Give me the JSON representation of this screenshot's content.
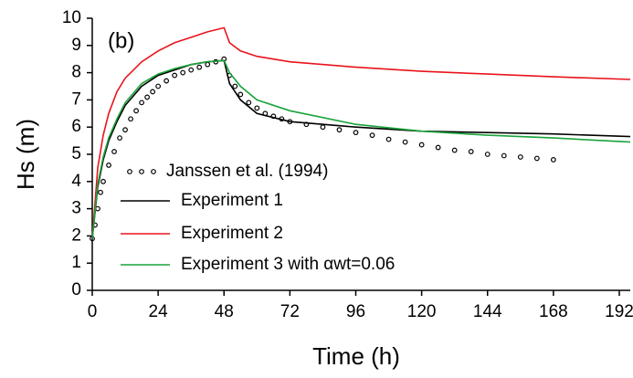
{
  "chart_data": {
    "type": "line",
    "annotation": "(b)",
    "x_label": "Time (h)",
    "y_label": "Hs (m)",
    "xlim": [
      0,
      196
    ],
    "ylim": [
      0,
      10
    ],
    "xticks": [
      0,
      24,
      48,
      72,
      96,
      120,
      144,
      168,
      192
    ],
    "yticks": [
      0,
      1,
      2,
      3,
      4,
      5,
      6,
      7,
      8,
      9,
      10
    ],
    "series": [
      {
        "name": "Janssen et al. (1994)",
        "color": "#000000",
        "style": "circles",
        "x": [
          0,
          1,
          2,
          3,
          4,
          6,
          8,
          10,
          12,
          14,
          16,
          18,
          20,
          22,
          24,
          27,
          30,
          33,
          36,
          39,
          42,
          45,
          48,
          50,
          52,
          54,
          57,
          60,
          63,
          66,
          69,
          72,
          78,
          84,
          90,
          96,
          102,
          108,
          114,
          120,
          126,
          132,
          138,
          144,
          150,
          156,
          162,
          168
        ],
        "values": [
          1.9,
          2.4,
          3.0,
          3.6,
          4.0,
          4.6,
          5.1,
          5.6,
          5.9,
          6.3,
          6.6,
          6.9,
          7.1,
          7.3,
          7.5,
          7.7,
          7.9,
          8.0,
          8.1,
          8.2,
          8.3,
          8.4,
          8.5,
          7.9,
          7.5,
          7.2,
          6.9,
          6.7,
          6.5,
          6.4,
          6.3,
          6.2,
          6.1,
          6.0,
          5.9,
          5.8,
          5.7,
          5.55,
          5.45,
          5.35,
          5.25,
          5.15,
          5.1,
          5.0,
          4.95,
          4.9,
          4.85,
          4.8
        ]
      },
      {
        "name": "Experiment 1",
        "color": "#000000",
        "style": "line",
        "x": [
          0,
          2,
          4,
          6,
          9,
          12,
          18,
          24,
          30,
          36,
          42,
          48,
          50,
          54,
          60,
          72,
          96,
          120,
          144,
          168,
          196
        ],
        "values": [
          1.9,
          3.8,
          4.8,
          5.5,
          6.2,
          6.8,
          7.5,
          7.9,
          8.1,
          8.3,
          8.4,
          8.45,
          7.6,
          7.0,
          6.5,
          6.2,
          6.0,
          5.85,
          5.8,
          5.75,
          5.65
        ]
      },
      {
        "name": "Experiment 2",
        "color": "#e8141b",
        "style": "line",
        "x": [
          0,
          2,
          4,
          6,
          9,
          12,
          18,
          24,
          30,
          36,
          42,
          48,
          50,
          54,
          60,
          72,
          96,
          120,
          144,
          168,
          196
        ],
        "values": [
          1.9,
          4.5,
          5.7,
          6.5,
          7.3,
          7.8,
          8.4,
          8.8,
          9.1,
          9.3,
          9.5,
          9.65,
          9.1,
          8.8,
          8.6,
          8.4,
          8.2,
          8.05,
          7.95,
          7.85,
          7.75
        ]
      },
      {
        "name": "Experiment 3 with αwt=0.06",
        "color": "#19a33b",
        "style": "line",
        "x": [
          0,
          2,
          4,
          6,
          9,
          12,
          18,
          24,
          30,
          36,
          42,
          48,
          50,
          54,
          60,
          72,
          96,
          120,
          144,
          168,
          196
        ],
        "values": [
          1.9,
          3.9,
          4.9,
          5.6,
          6.3,
          6.9,
          7.6,
          7.95,
          8.15,
          8.3,
          8.4,
          8.45,
          8.0,
          7.5,
          7.0,
          6.6,
          6.1,
          5.85,
          5.7,
          5.6,
          5.45
        ]
      }
    ]
  }
}
